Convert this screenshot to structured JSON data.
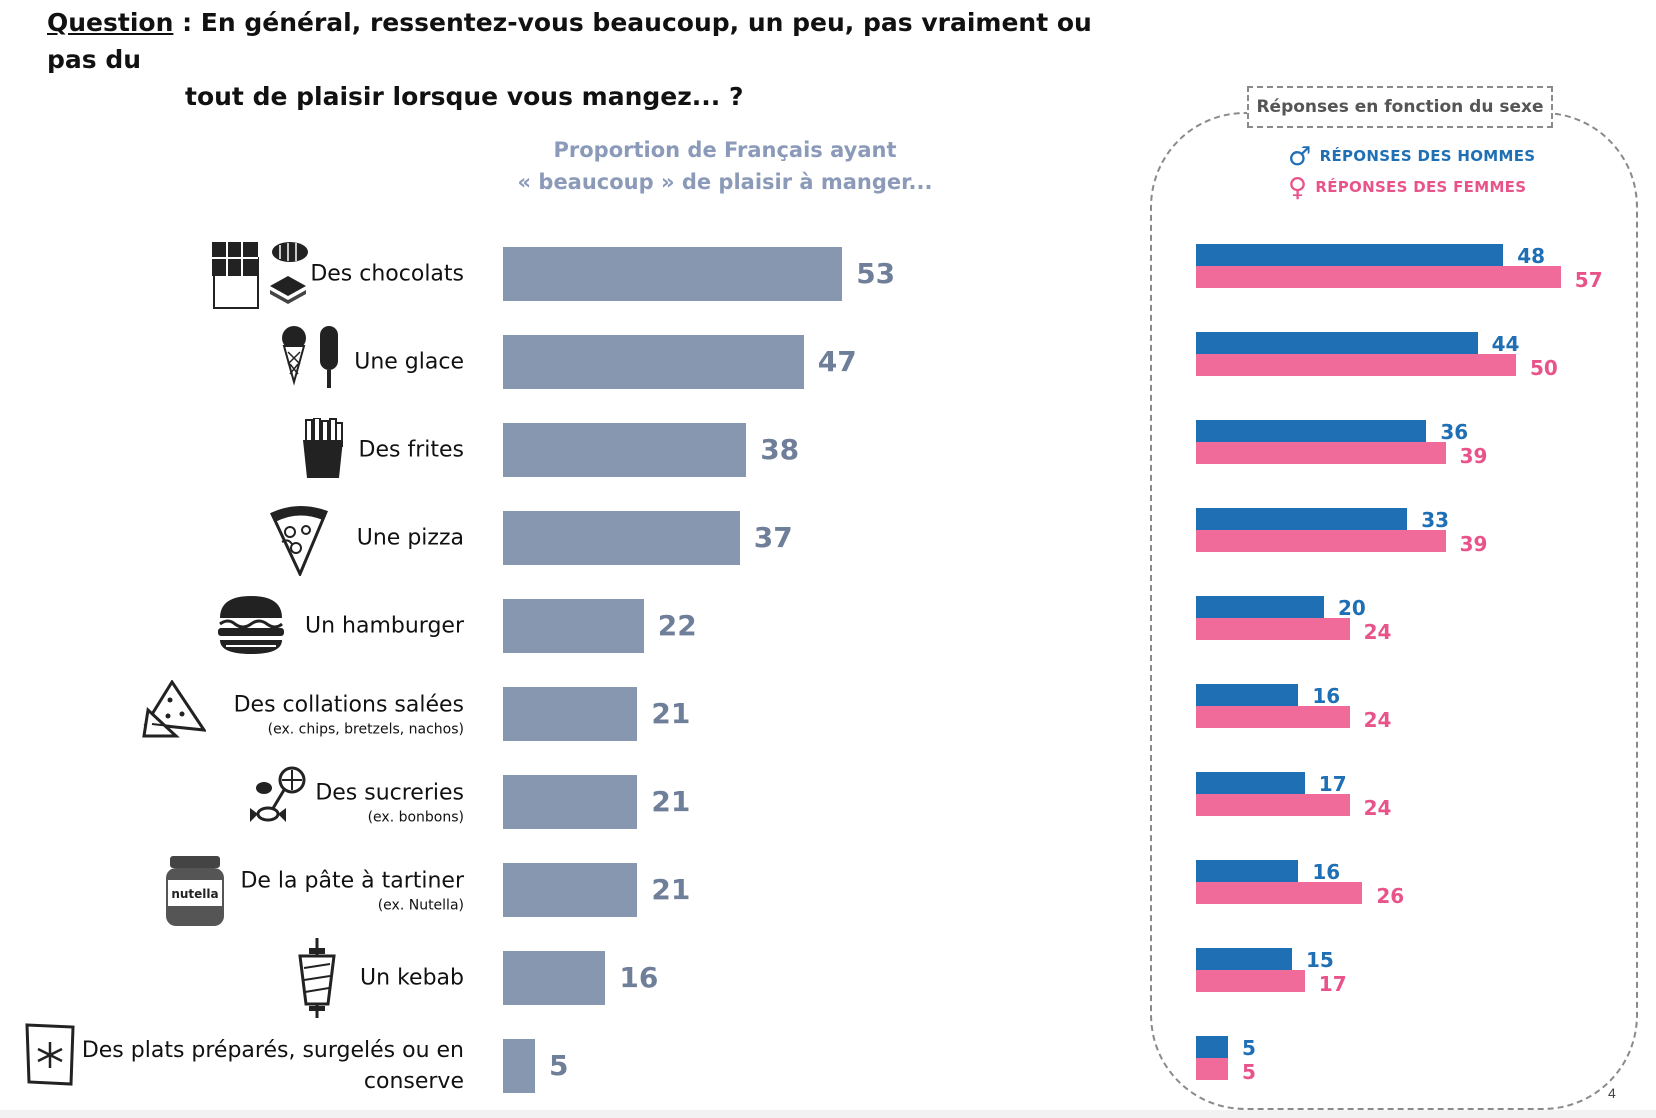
{
  "question": {
    "label": "Question",
    "line1": " : En général, ressentez-vous beaucoup, un peu, pas vraiment ou pas du",
    "line2": "tout de plaisir lorsque vous mangez... ?"
  },
  "panel": {
    "title": "Réponses en fonction du sexe",
    "legend_men": "RÉPONSES DES HOMMES",
    "legend_women": "RÉPONSES DES FEMMES",
    "men_color": "#1f6fb5",
    "women_color": "#f06b9a",
    "page_number": "4"
  },
  "chart_data": [
    {
      "type": "bar",
      "orientation": "horizontal",
      "title": "Proportion de Français ayant",
      "subtitle": "« beaucoup » de plaisir à manger...",
      "categories": [
        {
          "label": "Des chocolats",
          "note": "",
          "icon": "chocolate-icon"
        },
        {
          "label": "Une glace",
          "note": "",
          "icon": "ice-cream-icon"
        },
        {
          "label": "Des frites",
          "note": "",
          "icon": "fries-icon"
        },
        {
          "label": "Une pizza",
          "note": "",
          "icon": "pizza-icon"
        },
        {
          "label": "Un hamburger",
          "note": "",
          "icon": "hamburger-icon"
        },
        {
          "label": "Des collations salées",
          "note": "(ex. chips, bretzels, nachos)",
          "icon": "chips-icon"
        },
        {
          "label": "Des sucreries",
          "note": "(ex. bonbons)",
          "icon": "candy-icon"
        },
        {
          "label": "De la pâte à tartiner",
          "note": "(ex. Nutella)",
          "icon": "nutella-jar-icon"
        },
        {
          "label": "Un kebab",
          "note": "",
          "icon": "kebab-icon"
        },
        {
          "label": "Des plats préparés, surgelés ou en conserve",
          "note": "",
          "icon": "frozen-food-icon"
        }
      ],
      "values": [
        53,
        47,
        38,
        37,
        22,
        21,
        21,
        21,
        16,
        5
      ],
      "bar_color": "#8797b0",
      "xlim": [
        0,
        100
      ]
    },
    {
      "type": "bar",
      "orientation": "horizontal",
      "title": "Réponses en fonction du sexe",
      "series": [
        {
          "name": "RÉPONSES DES HOMMES",
          "color": "#1f6fb5",
          "values": [
            48,
            44,
            36,
            33,
            20,
            16,
            17,
            16,
            15,
            5
          ]
        },
        {
          "name": "RÉPONSES DES FEMMES",
          "color": "#f06b9a",
          "values": [
            57,
            50,
            39,
            39,
            24,
            24,
            24,
            26,
            17,
            5
          ]
        }
      ],
      "xlim": [
        0,
        100
      ]
    }
  ]
}
